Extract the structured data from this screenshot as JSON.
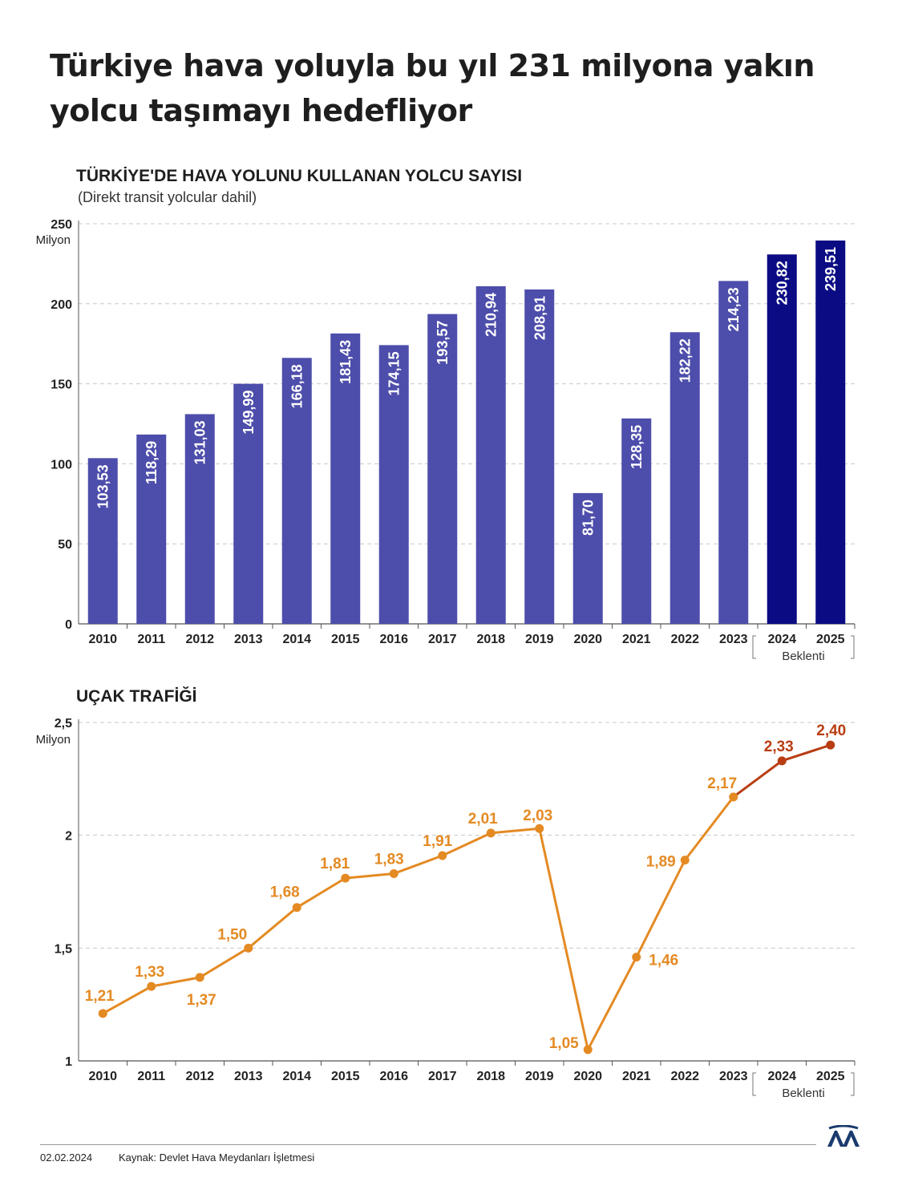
{
  "title": "Türkiye hava yoluyla bu yıl 231 milyona yakın yolcu taşımayı hedefliyor",
  "footer": {
    "date": "02.02.2024",
    "source": "Kaynak: Devlet Hava Meydanları İşletmesi"
  },
  "colors": {
    "bar": "#4d4dab",
    "bar_forecast": "#0b0b84",
    "line": "#e48a23",
    "line_forecast": "#b83d12",
    "logo": "#1a3b6e"
  },
  "logo_icon": "aa-logo-icon",
  "chart_data": [
    {
      "type": "bar",
      "title": "TÜRKİYE'DE HAVA YOLUNU KULLANAN YOLCU SAYISI",
      "note": "(Direkt transit yolcular dahil)",
      "ylabel": "Milyon",
      "ylim": [
        0,
        250
      ],
      "yticks": [
        0,
        50,
        100,
        150,
        200,
        250
      ],
      "grid": true,
      "categories": [
        "2010",
        "2011",
        "2012",
        "2013",
        "2014",
        "2015",
        "2016",
        "2017",
        "2018",
        "2019",
        "2020",
        "2021",
        "2022",
        "2023",
        "2024",
        "2025"
      ],
      "values": [
        103.53,
        118.29,
        131.03,
        149.99,
        166.18,
        181.43,
        174.15,
        193.57,
        210.94,
        208.91,
        81.7,
        128.35,
        182.22,
        214.23,
        230.82,
        239.51
      ],
      "labels": [
        "103,53",
        "118,29",
        "131,03",
        "149,99",
        "166,18",
        "181,43",
        "174,15",
        "193,57",
        "210,94",
        "208,91",
        "81,70",
        "128,35",
        "182,22",
        "214,23",
        "230,82",
        "239,51"
      ],
      "forecast_categories": [
        "2024",
        "2025"
      ],
      "forecast_label": "Beklenti"
    },
    {
      "type": "line",
      "title": "UÇAK TRAFİĞİ",
      "ylabel": "Milyon",
      "ylim": [
        1,
        2.5
      ],
      "yticks": [
        1,
        1.5,
        2,
        2.5
      ],
      "ytick_labels": [
        "1",
        "1,5",
        "2",
        "2,5"
      ],
      "grid": true,
      "categories": [
        "2010",
        "2011",
        "2012",
        "2013",
        "2014",
        "2015",
        "2016",
        "2017",
        "2018",
        "2019",
        "2020",
        "2021",
        "2022",
        "2023",
        "2024",
        "2025"
      ],
      "values": [
        1.21,
        1.33,
        1.37,
        1.5,
        1.68,
        1.81,
        1.83,
        1.91,
        2.01,
        2.03,
        1.05,
        1.46,
        1.89,
        2.17,
        2.33,
        2.4
      ],
      "labels": [
        "1,21",
        "1,33",
        "1,37",
        "1,50",
        "1,68",
        "1,81",
        "1,83",
        "1,91",
        "2,01",
        "2,03",
        "1,05",
        "1,46",
        "1,89",
        "2,17",
        "2,33",
        "2,40"
      ],
      "forecast_categories": [
        "2024",
        "2025"
      ],
      "forecast_label": "Beklenti"
    }
  ]
}
